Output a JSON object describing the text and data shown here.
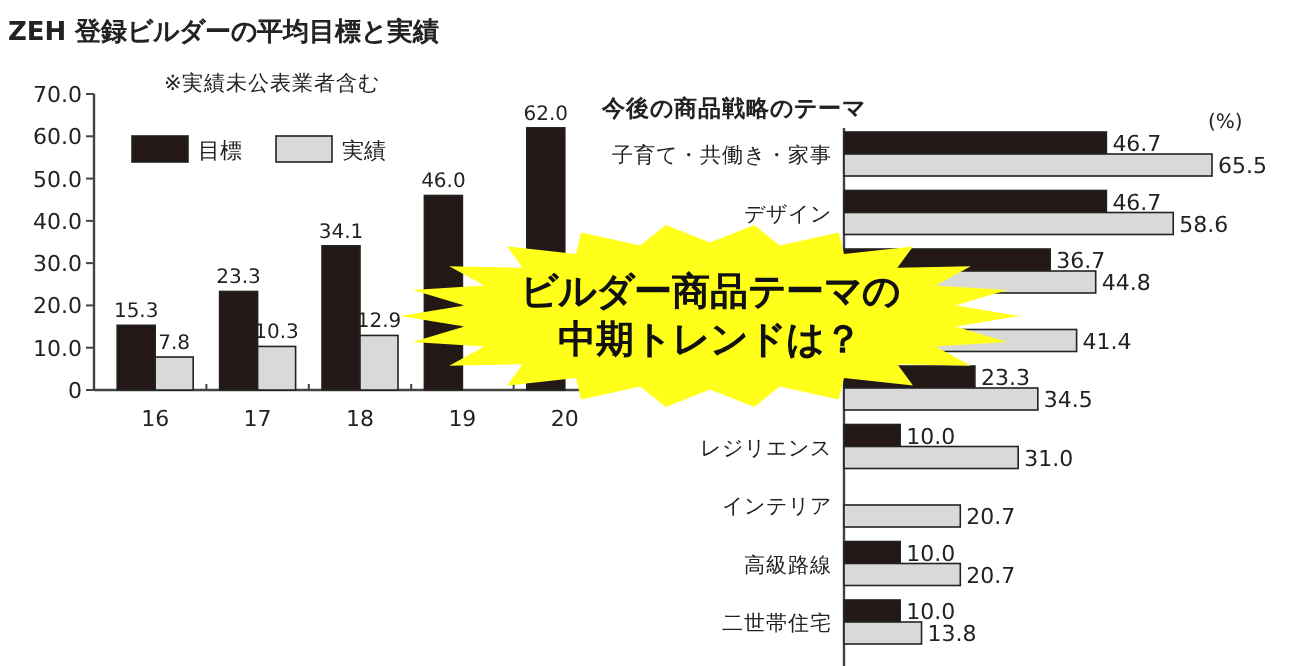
{
  "chart_data": [
    {
      "type": "bar",
      "title": "ZEH 登録ビルダーの平均目標と実績",
      "subtitle": "※実績未公表業者含む",
      "categories": [
        "16",
        "17",
        "18",
        "19",
        "20"
      ],
      "series": [
        {
          "name": "目標",
          "color": "#231815",
          "values": [
            15.3,
            23.3,
            34.1,
            46.0,
            62.0
          ],
          "value_labels": [
            "15.3",
            "23.3",
            "34.1",
            "46.0",
            "62.0"
          ]
        },
        {
          "name": "実績",
          "color": "#d9d9d9",
          "values": [
            7.8,
            10.3,
            12.9,
            null,
            null
          ],
          "value_labels": [
            "7.8",
            "10.3",
            "12.9",
            null,
            null
          ]
        }
      ],
      "ylim": [
        0,
        70
      ],
      "yticks": [
        0,
        {
          "value": 10,
          "label": "10.0"
        },
        {
          "value": 20,
          "label": "20.0"
        },
        {
          "value": 30,
          "label": "30.0"
        },
        {
          "value": 40,
          "label": "40.0"
        },
        {
          "value": 50,
          "label": "50.0"
        },
        {
          "value": 60,
          "label": "60.0"
        },
        {
          "value": 70,
          "label": "70.0"
        }
      ],
      "legend": "top left"
    },
    {
      "type": "bar",
      "orientation": "horizontal",
      "title": "今後の商品戦略のテーマ",
      "categories": [
        "子育て・共働き・家事",
        "デザイン",
        null,
        null,
        null,
        "レジリエンス",
        "インテリア",
        "高級路線",
        "二世帯住宅"
      ],
      "series": [
        {
          "color": "#231815",
          "values": [
            46.7,
            46.7,
            36.7,
            null,
            23.3,
            10.0,
            null,
            10.0,
            10.0
          ],
          "value_labels": [
            "46.7",
            "46.7",
            "36.7",
            null,
            "23.3",
            "10.0",
            null,
            "10.0",
            "10.0"
          ]
        },
        {
          "color": "#d9d9d9",
          "values": [
            65.5,
            58.6,
            44.8,
            41.4,
            34.5,
            31.0,
            20.7,
            20.7,
            13.8
          ],
          "value_labels": [
            "65.5",
            "58.6",
            "44.8",
            "41.4",
            "34.5",
            "31.0",
            "20.7",
            "20.7",
            "13.8"
          ]
        }
      ],
      "annotations": [
        "(%)",
        "ビルダー商品テーマの",
        "中期トレンドは？"
      ]
    }
  ]
}
